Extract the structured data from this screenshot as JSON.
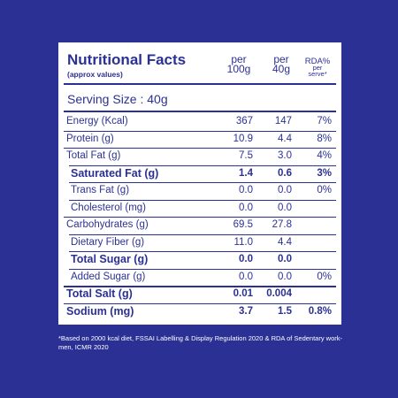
{
  "header": {
    "title": "Nutritional Facts",
    "subtitle": "(approx values)",
    "columns": [
      [
        "per",
        "100g"
      ],
      [
        "per",
        "40g"
      ],
      [
        "RDA%",
        "per",
        "serve*"
      ]
    ]
  },
  "serving_size": "Serving Size : 40g",
  "table": {
    "rows": [
      {
        "label": "Energy (Kcal)",
        "per100": "367",
        "per40": "147",
        "rda": "7%"
      },
      {
        "label": "Protein (g)",
        "per100": "10.9",
        "per40": "4.4",
        "rda": "8%"
      },
      {
        "label": "Total Fat (g)",
        "per100": "7.5",
        "per40": "3.0",
        "rda": "4%"
      },
      {
        "label": "Saturated Fat (g)",
        "per100": "1.4",
        "per40": "0.6",
        "rda": "3%",
        "bold": true,
        "indent": true
      },
      {
        "label": "Trans Fat (g)",
        "per100": "0.0",
        "per40": "0.0",
        "rda": "0%",
        "indent": true
      },
      {
        "label": "Cholesterol (mg)",
        "per100": "0.0",
        "per40": "0.0",
        "indent": true
      },
      {
        "label": "Carbohydrates (g)",
        "per100": "69.5",
        "per40": "27.8"
      },
      {
        "label": "Dietary Fiber (g)",
        "per100": "11.0",
        "per40": "4.4",
        "indent": true
      },
      {
        "label": "Total Sugar (g)",
        "per100": "0.0",
        "per40": "0.0",
        "bold": true,
        "indent": true
      },
      {
        "label": "Added Sugar (g)",
        "per100": "0.0",
        "per40": "0.0",
        "rda": "0%",
        "indent": true
      },
      {
        "label": "Total Salt (g)",
        "per100": "0.01",
        "per40": "0.004",
        "bold": true,
        "thick": true
      },
      {
        "label": "Sodium (mg)",
        "per100": "3.7",
        "per40": "1.5",
        "rda": "0.8%",
        "bold": true
      }
    ]
  },
  "footnote": "*Based on 2000 kcal diet, FSSAI Labelling & Display Regulation 2020 & RDA of Sedentary work-men, ICMR 2020"
}
